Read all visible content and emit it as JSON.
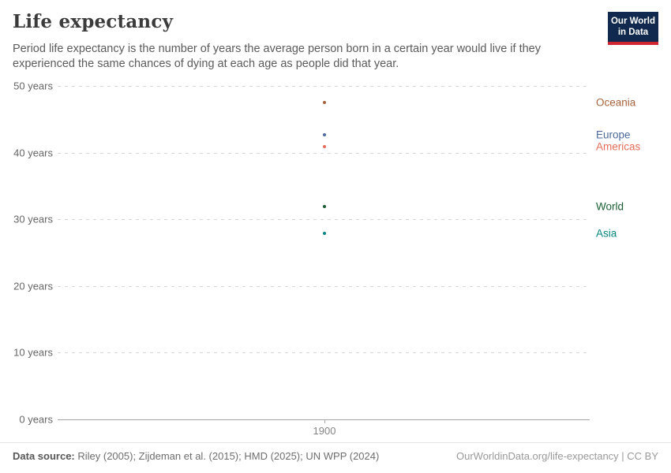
{
  "header": {
    "title": "Life expectancy",
    "subtitle": "Period life expectancy is the number of years the average person born in a certain year would live if they experienced the same chances of dying at each age as people did that year."
  },
  "logo": {
    "line1": "Our World",
    "line2": "in Data",
    "background_color": "#11294e",
    "stripe_color": "#ce2631"
  },
  "chart_data": {
    "type": "scatter",
    "title": "Life expectancy",
    "x": [
      1900
    ],
    "x_tick_labels": [
      "1900"
    ],
    "ylim": [
      0,
      50
    ],
    "y_ticks": [
      {
        "value": 0,
        "label": "0 years"
      },
      {
        "value": 10,
        "label": "10 years"
      },
      {
        "value": 20,
        "label": "20 years"
      },
      {
        "value": 30,
        "label": "30 years"
      },
      {
        "value": 40,
        "label": "40 years"
      },
      {
        "value": 50,
        "label": "50 years"
      }
    ],
    "grid": "horizontal-dashed",
    "legend_position": "right",
    "series": [
      {
        "name": "Oceania",
        "year": 1900,
        "value": 47.5,
        "color": "#A8633C"
      },
      {
        "name": "Europe",
        "year": 1900,
        "value": 42.7,
        "color": "#4C6A9C"
      },
      {
        "name": "Americas",
        "year": 1900,
        "value": 40.9,
        "color": "#E56E5A"
      },
      {
        "name": "World",
        "year": 1900,
        "value": 31.9,
        "color": "#185E34"
      },
      {
        "name": "Asia",
        "year": 1900,
        "value": 27.9,
        "color": "#00847E"
      }
    ]
  },
  "footer": {
    "datasource_label": "Data source:",
    "datasource_text": " Riley (2005); Zijdeman et al. (2015); HMD (2025); UN WPP (2024)",
    "attribution": "OurWorldinData.org/life-expectancy | CC BY"
  }
}
